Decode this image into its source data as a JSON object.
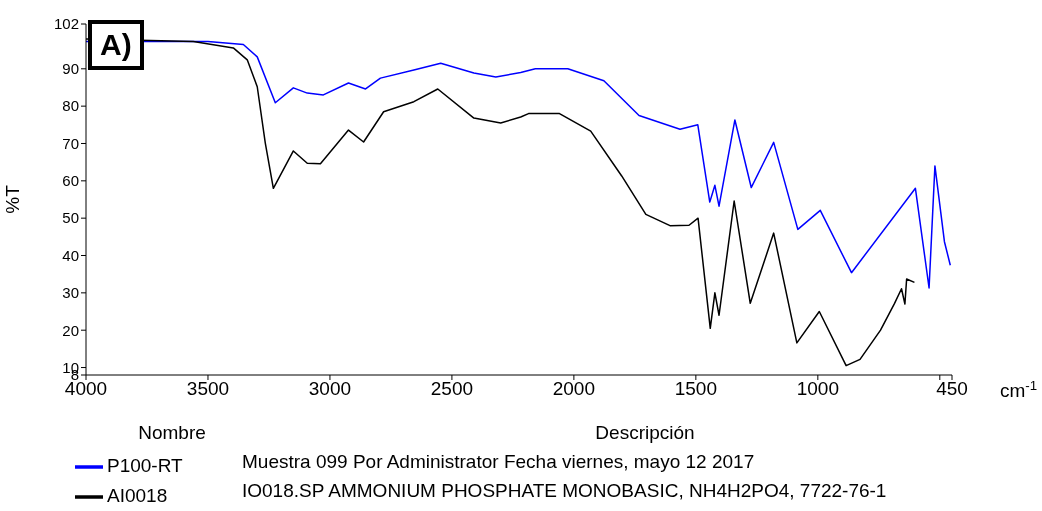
{
  "chart_data": {
    "type": "line",
    "xlabel": "cm$^{-1}$",
    "ylabel": "%T",
    "legend_title": "Nombre",
    "legend": "bottom",
    "marker": "none",
    "xlim": [
      4000,
      450
    ],
    "xticks": [
      4000,
      3500,
      3000,
      2500,
      2000,
      1500,
      1000,
      {
        "value": 500,
        "label": null
      },
      450
    ],
    "ylim": [
      8,
      102
    ],
    "yticks": [
      8,
      10,
      20,
      30,
      40,
      50,
      60,
      70,
      80,
      90,
      102
    ],
    "annotations": [
      "A)",
      "Descripción",
      "Muestra 099 Por Administrator Fecha viernes, mayo 12 2017",
      "IO018.SP AMMONIUM PHOSPHATE MONOBASIC, NH4H2PO4, 7722-76-1"
    ],
    "series": [
      {
        "name": "P100-RT",
        "color": "#0000ff",
        "x": [
          4000,
          3500,
          3355,
          3298,
          3224,
          3150,
          3093,
          3027,
          2924,
          2854,
          2793,
          2656,
          2546,
          2410,
          2320,
          2218,
          2158,
          2025,
          1877,
          1733,
          1565,
          1492,
          1443,
          1422,
          1405,
          1340,
          1273,
          1181,
          1082,
          990,
          862,
          600,
          544,
          520,
          481,
          457
        ],
        "values": [
          97.3,
          97.3,
          96.5,
          93.2,
          80.9,
          84.9,
          83.5,
          83.0,
          86.2,
          84.6,
          87.5,
          89.7,
          91.5,
          88.9,
          87.8,
          89.0,
          90,
          90,
          86.8,
          77.5,
          73.8,
          75,
          54.3,
          58.8,
          53.2,
          76.3,
          58.2,
          70.3,
          47.0,
          52.1,
          35.4,
          58.0,
          31.3,
          64,
          43.7,
          37.4
        ]
      },
      {
        "name": "AI0018",
        "color": "#000000",
        "x": [
          4000,
          3560,
          3396,
          3339,
          3298,
          3265,
          3232,
          3150,
          3093,
          3039,
          2924,
          2862,
          2780,
          2656,
          2558,
          2410,
          2300,
          2218,
          2186,
          2059,
          1931,
          1804,
          1705,
          1606,
          1528,
          1491,
          1441,
          1422,
          1405,
          1343,
          1277,
          1181,
          1086,
          994,
          884,
          827,
          743,
          686,
          657,
          643,
          636,
          604
        ],
        "values": [
          98.0,
          97.3,
          95.6,
          92.4,
          85.2,
          70.1,
          58,
          68,
          64.7,
          64.6,
          73.6,
          70.4,
          78.5,
          81.2,
          84.6,
          76.8,
          75.5,
          77.1,
          78,
          78,
          73.3,
          61.3,
          51,
          48,
          48.1,
          50,
          20.5,
          30,
          24,
          54.6,
          27.2,
          46,
          16.6,
          25,
          10.5,
          12.2,
          20,
          27.1,
          31.1,
          27,
          33.7,
          32.8
        ]
      }
    ]
  }
}
